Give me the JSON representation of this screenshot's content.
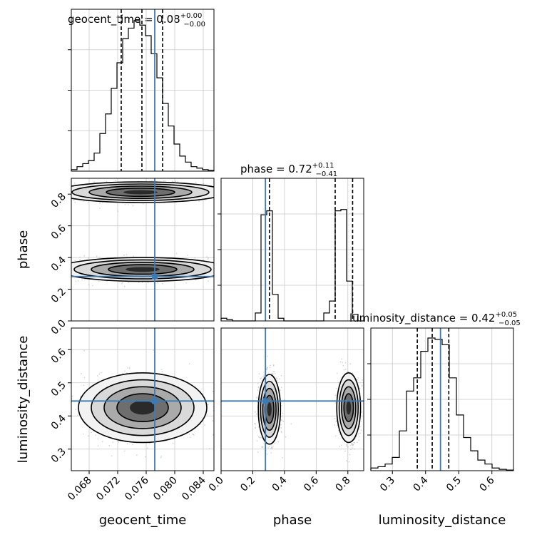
{
  "chart_data": {
    "type": "corner",
    "parameters": [
      "geocent_time",
      "phase",
      "luminosity_distance"
    ],
    "axis_labels": {
      "geocent_time": "geocent_time",
      "phase": "phase",
      "luminosity_distance": "luminosity_distance"
    },
    "titles": [
      {
        "param": "geocent_time",
        "label": "geocent_time = 0.08",
        "plus": "+0.00",
        "minus": "−0.00"
      },
      {
        "param": "phase",
        "label": "phase = 0.72",
        "plus": "+0.11",
        "minus": "−0.41"
      },
      {
        "param": "luminosity_distance",
        "label": "luminosity_distance = 0.42",
        "plus": "+0.05",
        "minus": "−0.05"
      }
    ],
    "ranges": {
      "geocent_time": [
        0.0655,
        0.0855
      ],
      "phase": [
        0.0,
        0.9
      ],
      "luminosity_distance": [
        0.235,
        0.665
      ]
    },
    "ticks": {
      "geocent_time": {
        "values": [
          0.068,
          0.072,
          0.076,
          0.08,
          0.084
        ],
        "labels": [
          "0.068",
          "0.072",
          "0.076",
          "0.080",
          "0.084"
        ]
      },
      "phase": {
        "values": [
          0.0,
          0.2,
          0.4,
          0.6,
          0.8
        ],
        "labels": [
          "0.0",
          "0.2",
          "0.4",
          "0.6",
          "0.8"
        ]
      },
      "luminosity_distance": {
        "values": [
          0.3,
          0.4,
          0.5,
          0.6
        ],
        "labels": [
          "0.3",
          "0.4",
          "0.5",
          "0.6"
        ]
      }
    },
    "truths": {
      "geocent_time": 0.0772,
      "phase": 0.28,
      "luminosity_distance": 0.445
    },
    "quantiles": {
      "geocent_time": [
        0.0725,
        0.0754,
        0.0783
      ],
      "phase": [
        0.305,
        0.72,
        0.83
      ],
      "luminosity_distance": [
        0.375,
        0.42,
        0.47
      ]
    },
    "histograms": {
      "geocent_time": [
        0.01,
        0.03,
        0.05,
        0.07,
        0.12,
        0.25,
        0.38,
        0.55,
        0.72,
        0.88,
        0.95,
        1.0,
        0.97,
        0.9,
        0.78,
        0.62,
        0.45,
        0.3,
        0.18,
        0.1,
        0.06,
        0.03,
        0.02,
        0.01,
        0.005
      ],
      "phase": [
        0.02,
        0.01,
        0.0,
        0.0,
        0.0,
        0.0,
        0.06,
        0.8,
        0.83,
        0.2,
        0.02,
        0.0,
        0.0,
        0.0,
        0.0,
        0.0,
        0.0,
        0.0,
        0.06,
        0.15,
        0.83,
        0.84,
        0.3,
        0.05,
        0.0
      ],
      "luminosity_distance": [
        0.02,
        0.03,
        0.05,
        0.1,
        0.3,
        0.6,
        0.7,
        0.9,
        1.0,
        0.99,
        0.95,
        0.7,
        0.42,
        0.25,
        0.15,
        0.08,
        0.05,
        0.02,
        0.01,
        0.005
      ]
    },
    "contours_2d": [
      {
        "x": "geocent_time",
        "y": "phase",
        "blobs": [
          {
            "cx": 0.0752,
            "cy": 0.812,
            "sx": 0.0048,
            "sy": 0.026
          },
          {
            "cx": 0.0755,
            "cy": 0.325,
            "sx": 0.0048,
            "sy": 0.03
          }
        ]
      },
      {
        "x": "geocent_time",
        "y": "luminosity_distance",
        "blobs": [
          {
            "cx": 0.0755,
            "cy": 0.425,
            "sx": 0.0036,
            "sy": 0.042
          }
        ]
      },
      {
        "x": "phase",
        "y": "luminosity_distance",
        "blobs": [
          {
            "cx": 0.305,
            "cy": 0.42,
            "sx": 0.028,
            "sy": 0.042
          },
          {
            "cx": 0.805,
            "cy": 0.425,
            "sx": 0.03,
            "sy": 0.042
          }
        ]
      }
    ],
    "truth_color": "#3b7bb5",
    "contour_color": "#000000",
    "scatter_color": "#bbbbbb",
    "grid": true
  }
}
